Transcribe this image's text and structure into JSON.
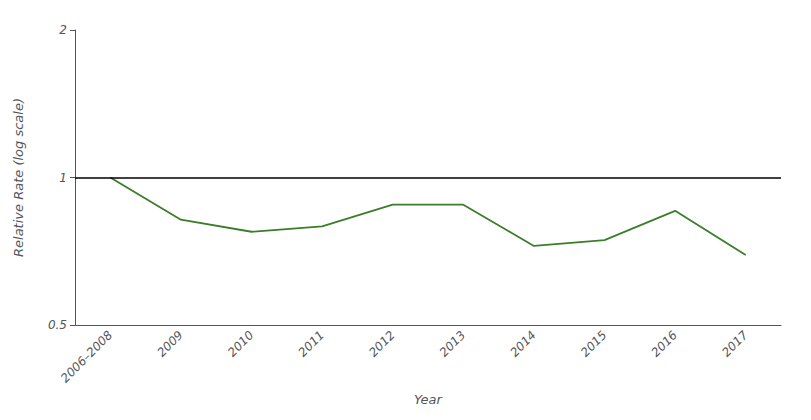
{
  "chart_data": {
    "type": "line",
    "xlabel": "Year",
    "ylabel": "Relative Rate (log scale)",
    "categories": [
      "2006–2008",
      "2009",
      "2010",
      "2011",
      "2012",
      "2013",
      "2014",
      "2015",
      "2016",
      "2017"
    ],
    "values": [
      1.0,
      0.82,
      0.775,
      0.795,
      0.88,
      0.88,
      0.725,
      0.745,
      0.855,
      0.695
    ],
    "color": "#3a7d2b",
    "hlines": [
      {
        "y": 1.0,
        "color": "#000000"
      }
    ],
    "log": "y",
    "ylim": [
      0.5,
      2.0
    ],
    "yticks": [
      0.5,
      1,
      2
    ],
    "grid": false
  }
}
